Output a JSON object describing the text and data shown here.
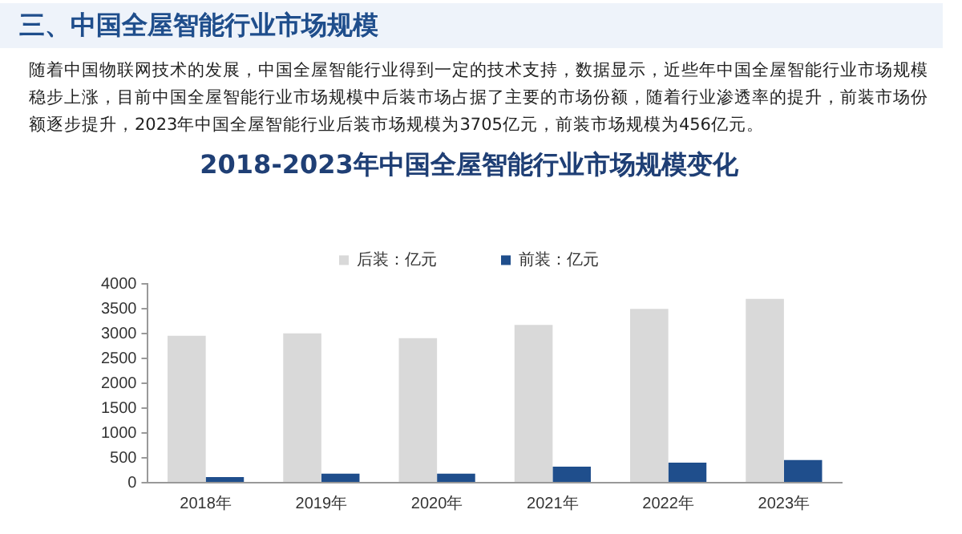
{
  "chart_data": {
    "type": "bar",
    "title": "2018-2023年中国全屋智能行业市场规模变化",
    "annotations": [
      "三、中国全屋智能行业市场规模",
      "随着中国物联网技术的发展，中国全屋智能行业得到一定的技术支持，数据显示，近些年中国全屋智能行业市场规模稳步上涨，目前中国全屋智能行业市场规模中后装市场占据了主要的市场份额，随着行业渗透率的提升，前装市场份额逐步提升，2023年中国全屋智能行业后装市场规模为3705亿元，前装市场规模为456亿元。"
    ],
    "categories": [
      "2018年",
      "2019年",
      "2020年",
      "2021年",
      "2022年",
      "2023年"
    ],
    "series": [
      {
        "name": "后装：亿元",
        "color": "#d9d9d9",
        "values": [
          2960,
          3010,
          2910,
          3180,
          3500,
          3705
        ]
      },
      {
        "name": "前装：亿元",
        "color": "#1f4e8c",
        "values": [
          115,
          180,
          180,
          325,
          405,
          456
        ]
      }
    ],
    "ylim": [
      0,
      4000
    ],
    "yticks": [
      0,
      500,
      1000,
      1500,
      2000,
      2500,
      3000,
      3500,
      4000
    ],
    "grid": false,
    "legend": "top"
  }
}
